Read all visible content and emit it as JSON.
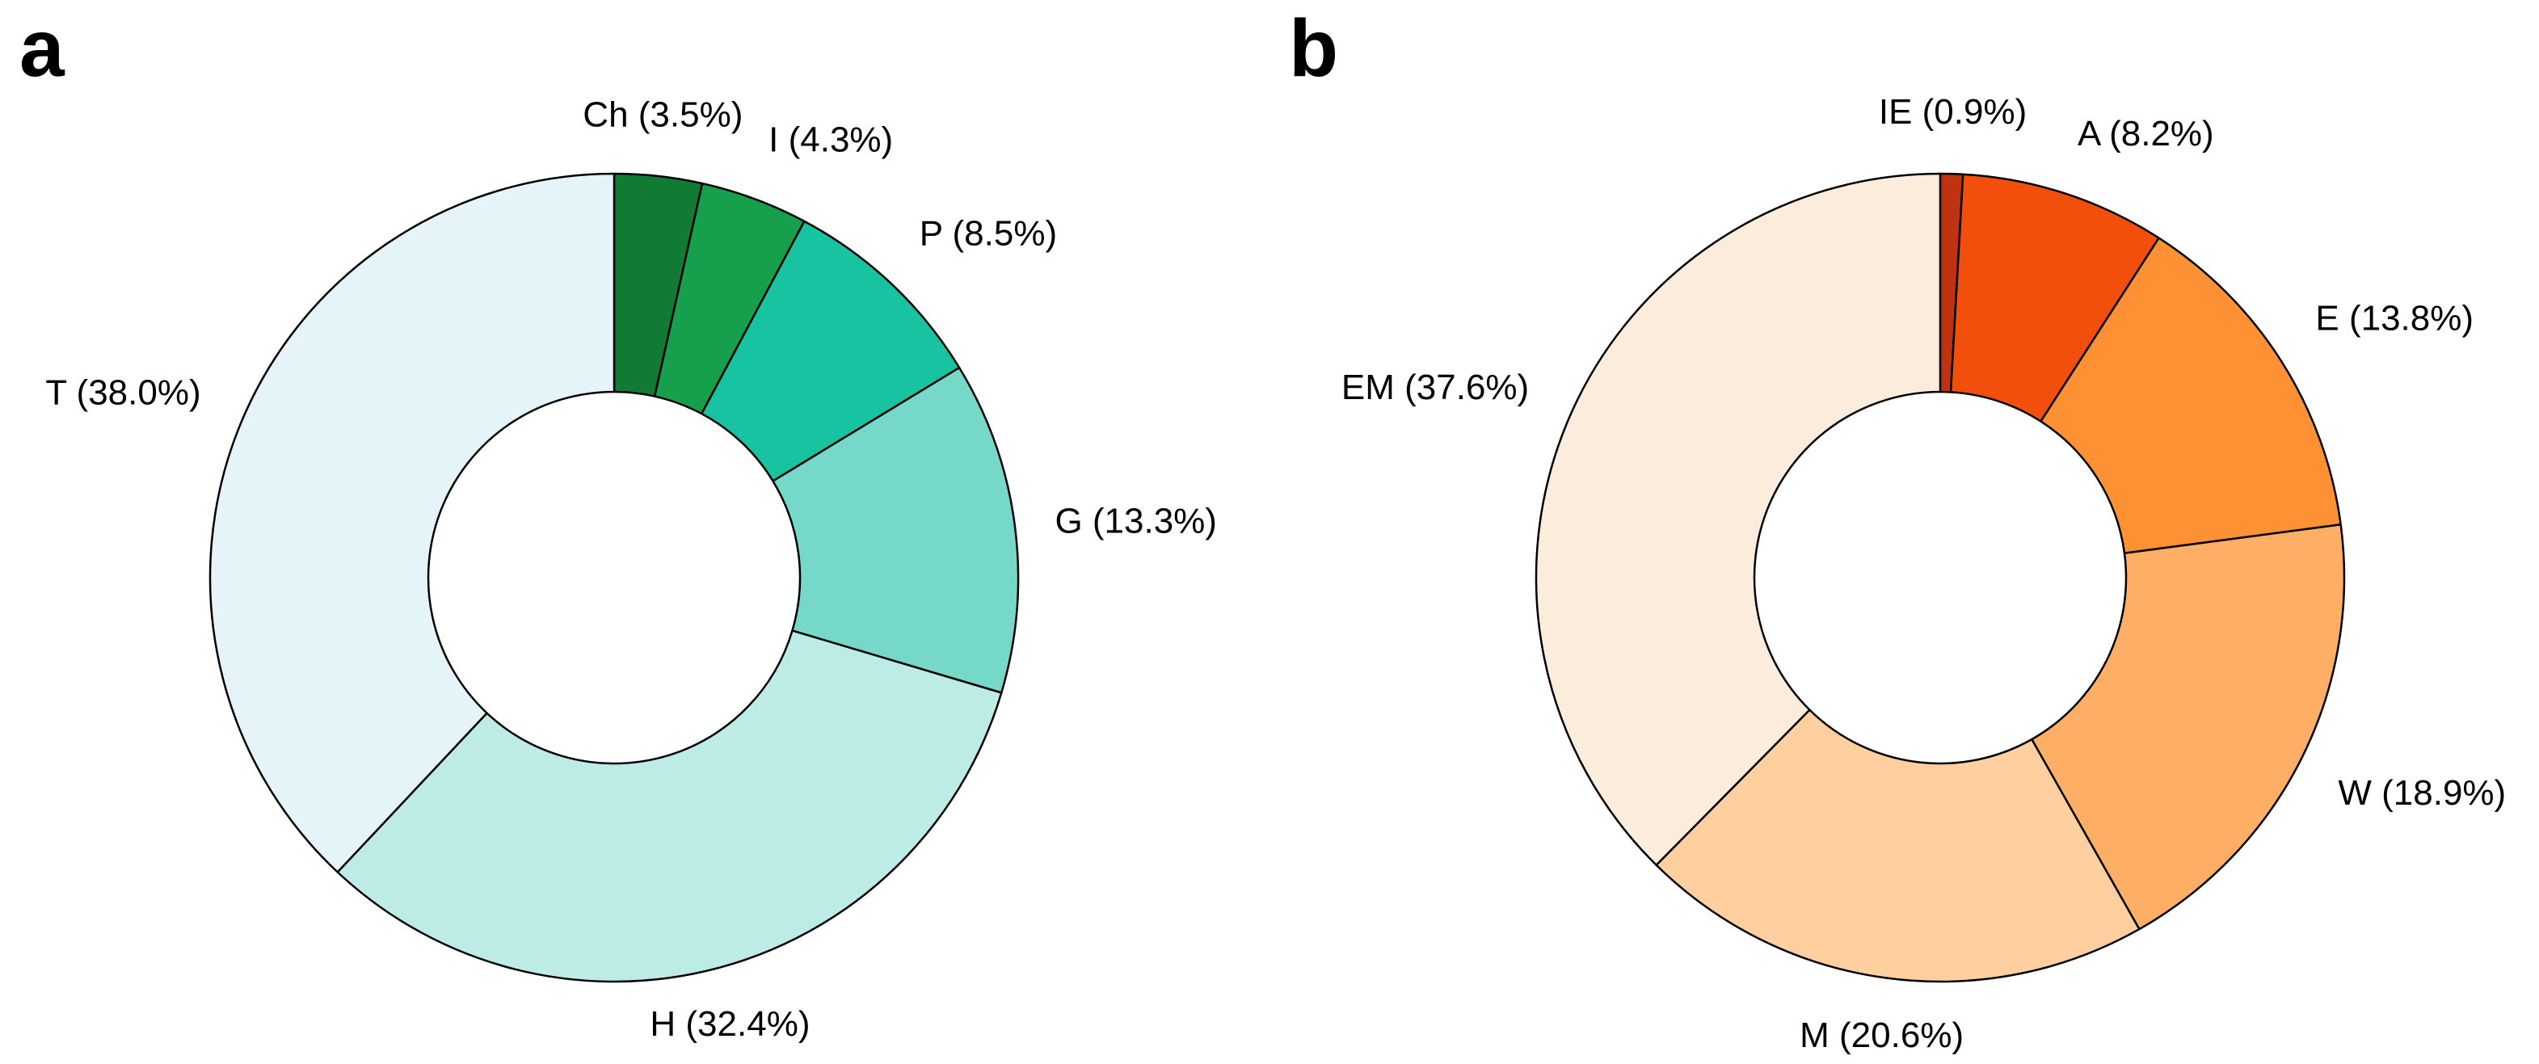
{
  "figure": {
    "background": "#ffffff",
    "outline_color": "#000000",
    "label_color": "#000000"
  },
  "chart_data": [
    {
      "type": "pie",
      "variant": "donut",
      "panel_letter": "a",
      "title": "",
      "direction": "clockwise",
      "start_angle_deg_from_top": 0,
      "inner_radius_ratio": 0.46,
      "legend": "none",
      "categories": [
        "Ch",
        "I",
        "P",
        "G",
        "H",
        "T"
      ],
      "values": [
        3.5,
        4.3,
        8.5,
        13.3,
        32.4,
        38.0
      ],
      "slices": [
        {
          "label": "Ch",
          "value": 3.5,
          "display": "Ch (3.5%)",
          "color": "#117a33"
        },
        {
          "label": "I",
          "value": 4.3,
          "display": "I (4.3%)",
          "color": "#16a04c"
        },
        {
          "label": "P",
          "value": 8.5,
          "display": "P (8.5%)",
          "color": "#17c3a0"
        },
        {
          "label": "G",
          "value": 13.3,
          "display": "G (13.3%)",
          "color": "#76d8c9"
        },
        {
          "label": "H",
          "value": 32.4,
          "display": "H (32.4%)",
          "color": "#bdece6"
        },
        {
          "label": "T",
          "value": 38.0,
          "display": "T (38.0%)",
          "color": "#e4f4f8"
        }
      ]
    },
    {
      "type": "pie",
      "variant": "donut",
      "panel_letter": "b",
      "title": "",
      "direction": "clockwise",
      "start_angle_deg_from_top": 0,
      "inner_radius_ratio": 0.46,
      "legend": "none",
      "categories": [
        "IE",
        "A",
        "E",
        "W",
        "M",
        "EM"
      ],
      "values": [
        0.9,
        8.2,
        13.8,
        18.9,
        20.6,
        37.6
      ],
      "slices": [
        {
          "label": "IE",
          "value": 0.9,
          "display": "IE (0.9%)",
          "color": "#c03310"
        },
        {
          "label": "A",
          "value": 8.2,
          "display": "A (8.2%)",
          "color": "#f24f0c"
        },
        {
          "label": "E",
          "value": 13.8,
          "display": "E (13.8%)",
          "color": "#fd9133"
        },
        {
          "label": "W",
          "value": 18.9,
          "display": "W (18.9%)",
          "color": "#ffae66"
        },
        {
          "label": "M",
          "value": 20.6,
          "display": "M (20.6%)",
          "color": "#ffcfa0"
        },
        {
          "label": "EM",
          "value": 37.6,
          "display": "EM (37.6%)",
          "color": "#fcecdc"
        }
      ]
    }
  ]
}
